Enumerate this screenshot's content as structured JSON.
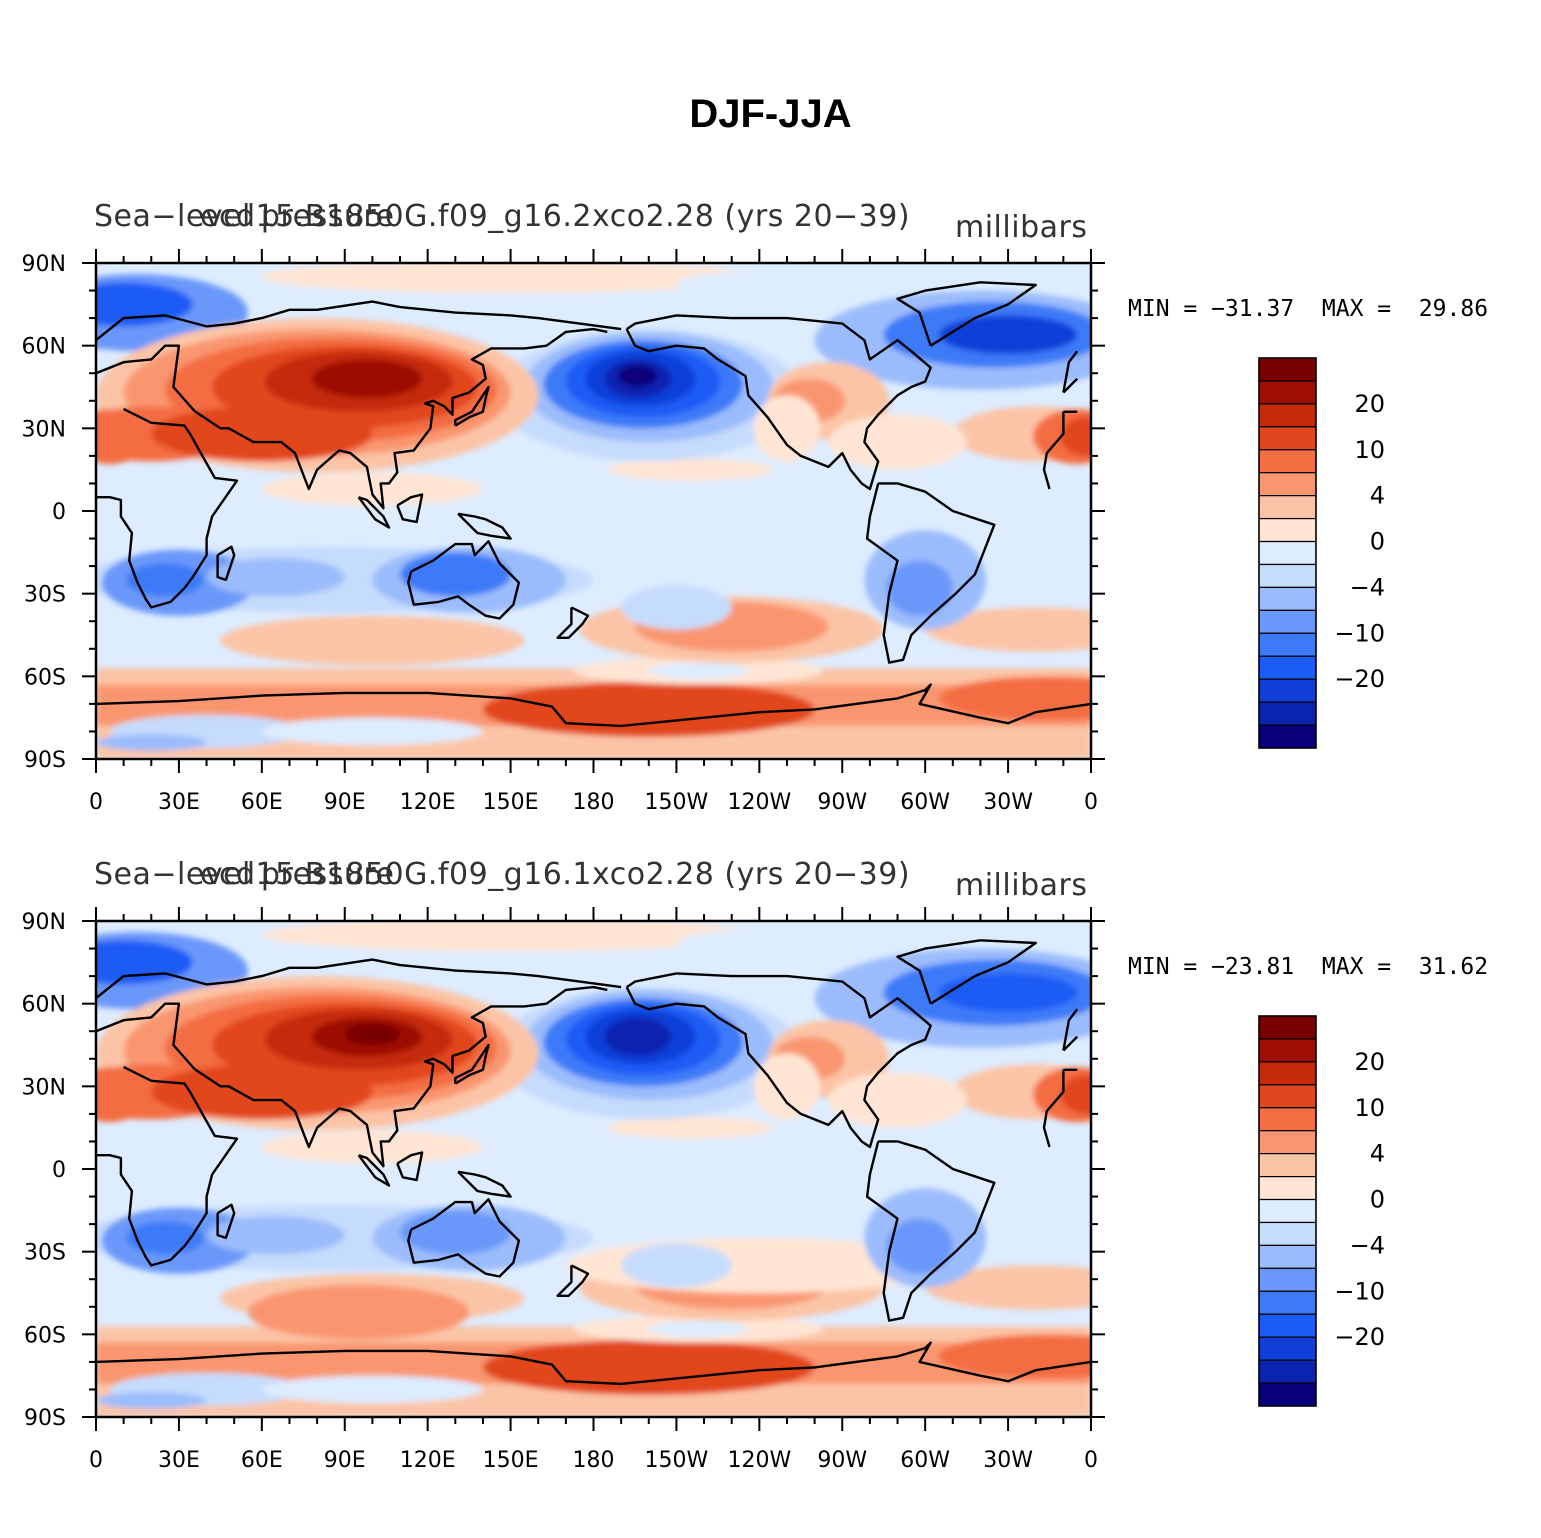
{
  "title": "DJF-JJA",
  "palette": [
    "#08007a",
    "#0a24b0",
    "#1040d8",
    "#1c5cf5",
    "#3c7af8",
    "#6a98fa",
    "#9bbcfc",
    "#c6dcfd",
    "#ddecff",
    "#ffe5d4",
    "#fcc4a6",
    "#f99670",
    "#f46d43",
    "#e2461f",
    "#c52a0a",
    "#9c0f02",
    "#7a0000"
  ],
  "colorbar": {
    "labels": [
      "20",
      "10",
      "4",
      "0",
      "−4",
      "−10",
      "−20"
    ]
  },
  "lat_ticks": [
    "90N",
    "60N",
    "30N",
    "0",
    "30S",
    "60S",
    "90S"
  ],
  "lon_ticks": [
    "0",
    "30E",
    "60E",
    "90E",
    "120E",
    "150E",
    "180",
    "150W",
    "120W",
    "90W",
    "60W",
    "30W",
    "0"
  ],
  "panels": [
    {
      "variable": "Sea−level pressure",
      "case": "ecd15.B1850G.f09_g16.2xco2.28 (yrs 20−39)",
      "units": "millibars",
      "min_label": "MIN = −31.37",
      "max_label": "MAX =  29.86"
    },
    {
      "variable": "Sea−level pressure",
      "case": "ecd15.B1850G.f09_g16.1xco2.28 (yrs 20−39)",
      "units": "millibars",
      "min_label": "MIN = −23.81",
      "max_label": "MAX =  31.62"
    }
  ]
}
